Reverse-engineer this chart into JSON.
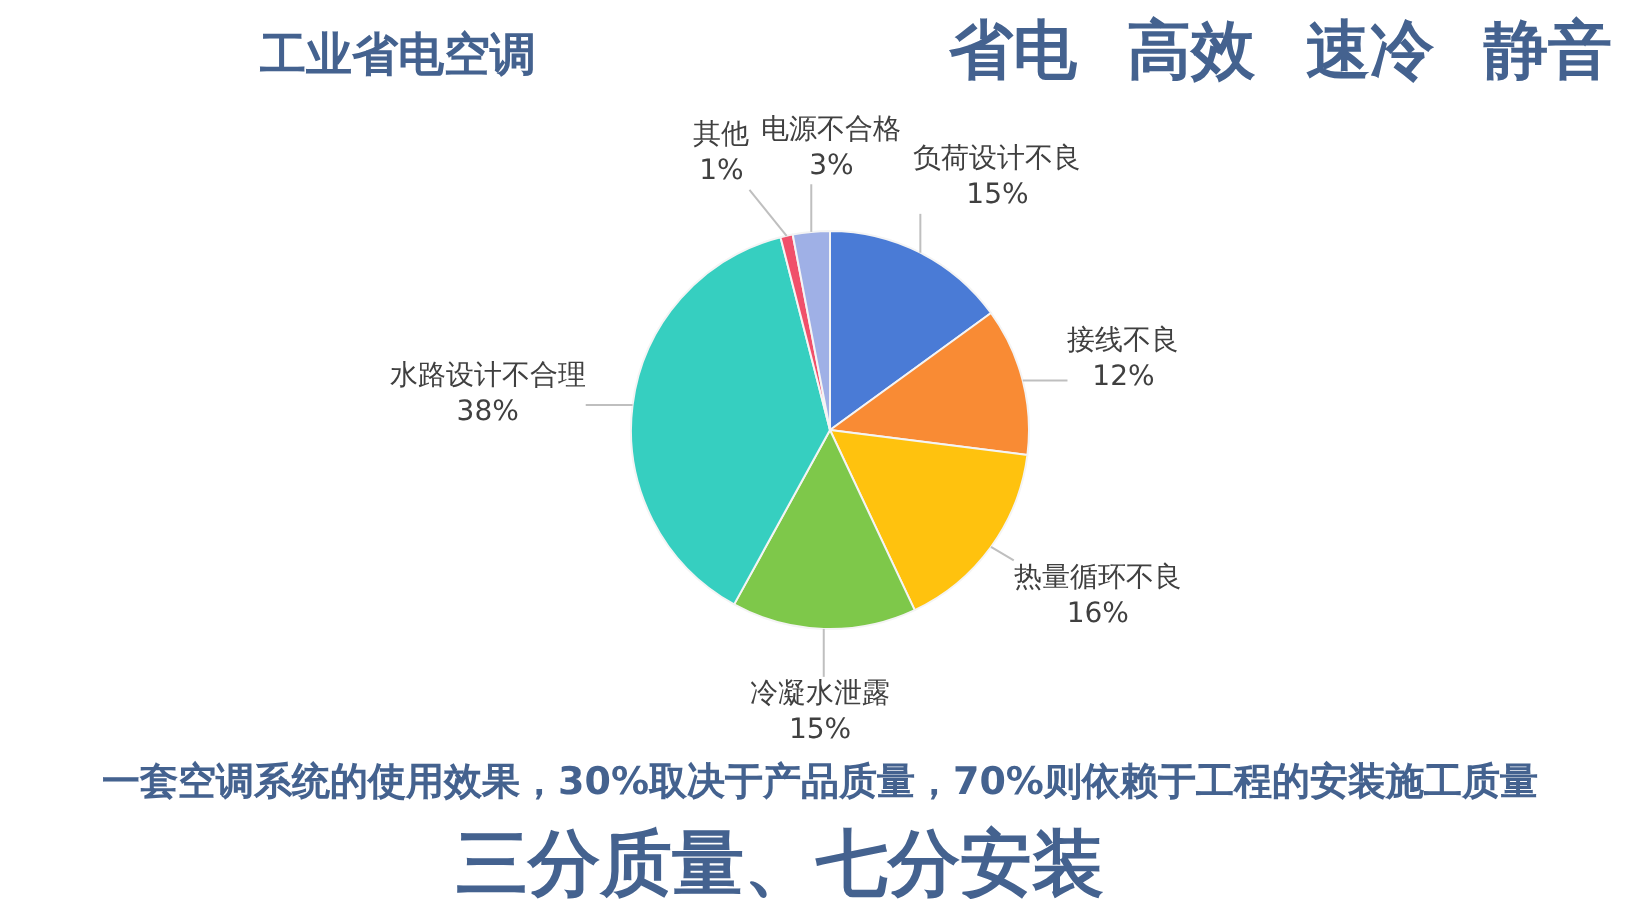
{
  "chart_data": {
    "type": "pie",
    "title": "工业省电空调",
    "subtitle": "省电 高效 速冷 静音",
    "categories": [
      "负荷设计不良",
      "接线不良",
      "热量循环不良",
      "冷凝水泄露",
      "水路设计不合理",
      "其他",
      "电源不合格"
    ],
    "values": [
      15,
      12,
      16,
      15,
      38,
      1,
      3
    ],
    "value_labels": [
      "15%",
      "12%",
      "16%",
      "15%",
      "38%",
      "1%",
      "3%"
    ],
    "colors": [
      "#4a7bd6",
      "#f98b34",
      "#ffc20e",
      "#7ec84a",
      "#36cfc0",
      "#f0506a",
      "#9fb0e6"
    ],
    "annotations": [
      "一套空调系统的使用效果，30%取决于产品质量，70%则依赖于工程的安装施工质量",
      "三分质量、七分安装"
    ]
  }
}
